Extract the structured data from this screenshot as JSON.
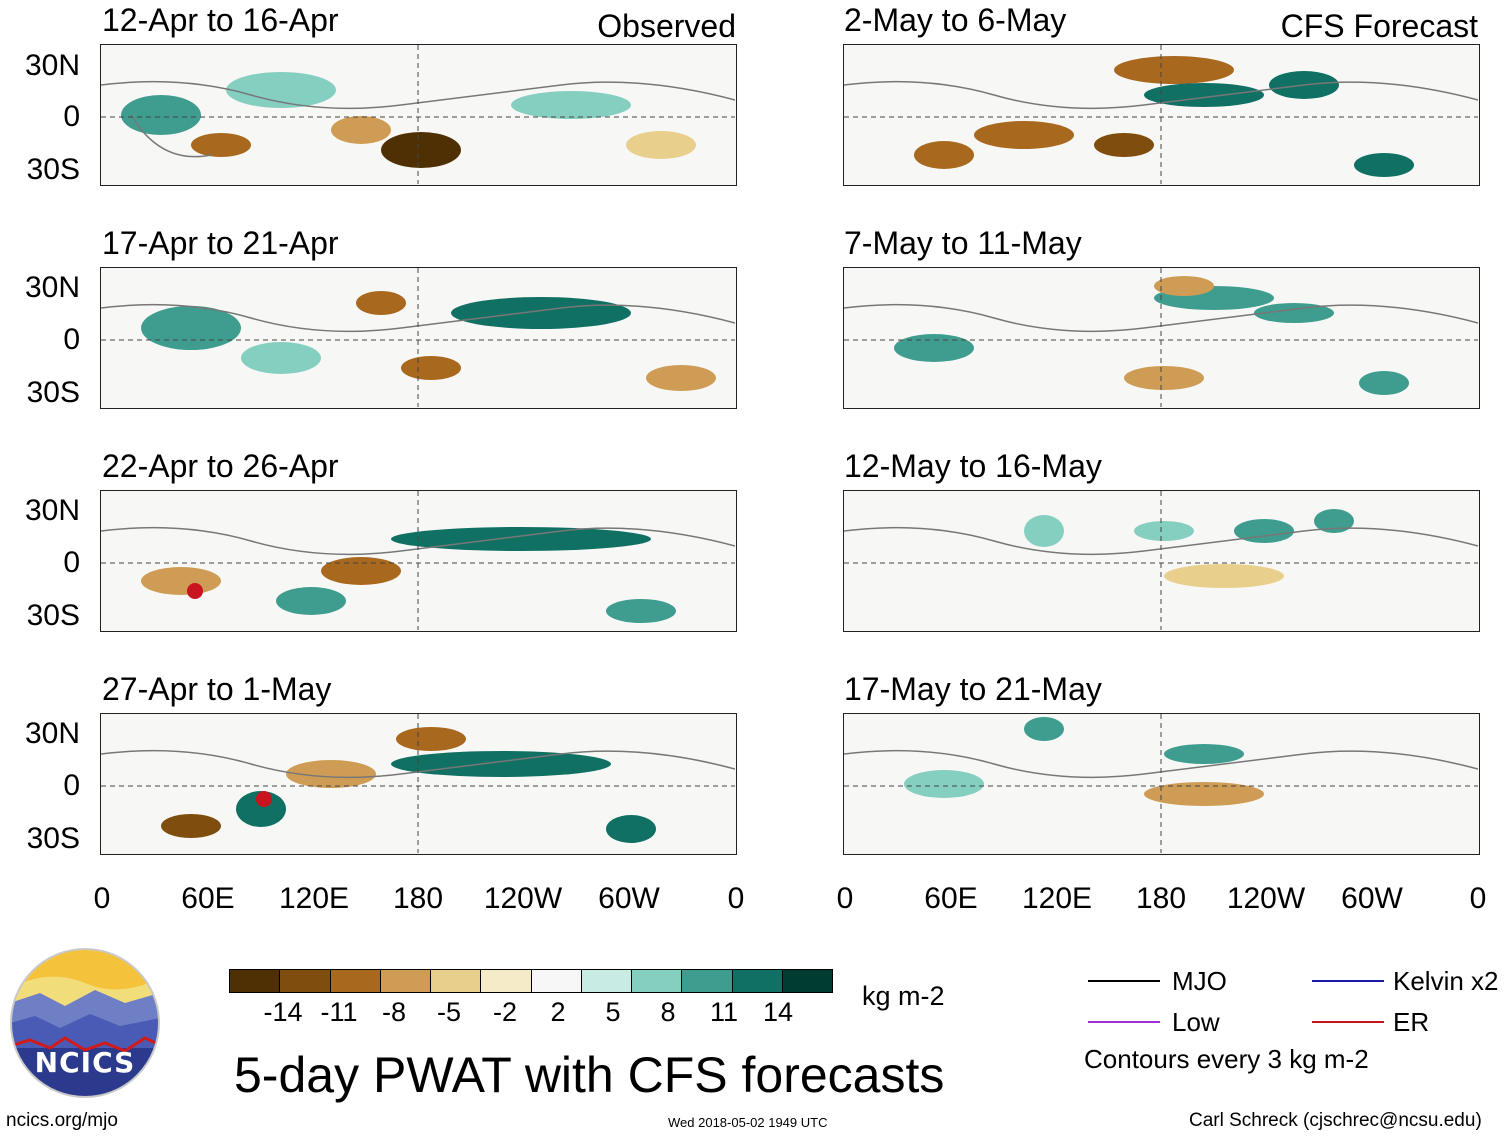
{
  "observed_tag": "Observed",
  "forecast_tag": "CFS Forecast",
  "panels_left": [
    {
      "title": "12-Apr to 16-Apr"
    },
    {
      "title": "17-Apr to 21-Apr"
    },
    {
      "title": "22-Apr to 26-Apr"
    },
    {
      "title": "27-Apr to 1-May"
    }
  ],
  "panels_right": [
    {
      "title": "2-May to 6-May"
    },
    {
      "title": "7-May to 11-May"
    },
    {
      "title": "12-May to 16-May"
    },
    {
      "title": "17-May to 21-May"
    }
  ],
  "lat_labels": [
    "30N",
    "0",
    "30S"
  ],
  "lon_labels": [
    "0",
    "60E",
    "120E",
    "180",
    "120W",
    "60W",
    "0"
  ],
  "colorbar": {
    "colors": [
      "#4f3005",
      "#7f4d0d",
      "#a8681e",
      "#cf9c55",
      "#e8d08c",
      "#f6ebc8",
      "#f7f7f7",
      "#c8ece4",
      "#85cfc0",
      "#3f9d8f",
      "#117064",
      "#003c30"
    ],
    "ticks": [
      "-14",
      "-11",
      "-8",
      "-5",
      "-2",
      "2",
      "5",
      "8",
      "11",
      "14"
    ],
    "units": "kg m-2"
  },
  "main_title": "5-day PWAT with CFS forecasts",
  "logo_text": "NCICS",
  "legend": {
    "items": [
      {
        "label": "MJO",
        "color": "#000000"
      },
      {
        "label": "Kelvin x2",
        "color": "#1a1aa8"
      },
      {
        "label": "Low",
        "color": "#9b30d6"
      },
      {
        "label": "ER",
        "color": "#c8141e"
      }
    ],
    "contour_note": "Contours every 3 kg m-2"
  },
  "footer": {
    "url": "ncics.org/mjo",
    "timestamp": "Wed 2018-05-02 1949 UTC",
    "author": "Carl Schreck (cjschrec@ncsu.edu)"
  }
}
